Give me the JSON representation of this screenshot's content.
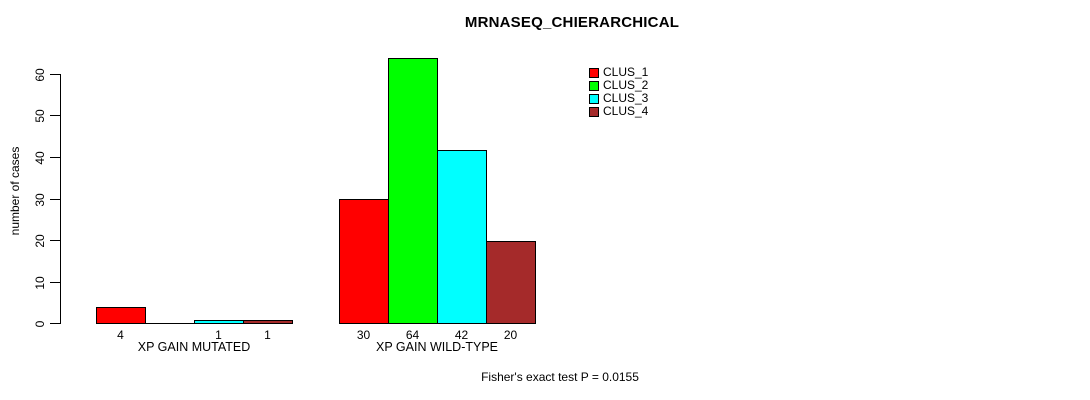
{
  "title": "MRNASEQ_CHIERARCHICAL",
  "y_axis": {
    "label": "number of cases"
  },
  "footer_note": "Fisher's exact test P = 0.0155",
  "legend": {
    "items": [
      {
        "label": "CLUS_1",
        "color": "#FF0000"
      },
      {
        "label": "CLUS_2",
        "color": "#00FF00"
      },
      {
        "label": "CLUS_3",
        "color": "#00FFFF"
      },
      {
        "label": "CLUS_4",
        "color": "#A52A2A"
      }
    ]
  },
  "chart_data": {
    "type": "bar",
    "title": "MRNASEQ_CHIERARCHICAL",
    "categories": [
      "XP GAIN MUTATED",
      "XP GAIN WILD-TYPE"
    ],
    "series": [
      {
        "name": "CLUS_1",
        "color": "#FF0000",
        "values": [
          4,
          30
        ]
      },
      {
        "name": "CLUS_2",
        "color": "#00FF00",
        "values": [
          0,
          64
        ]
      },
      {
        "name": "CLUS_3",
        "color": "#00FFFF",
        "values": [
          1,
          42
        ]
      },
      {
        "name": "CLUS_4",
        "color": "#A52A2A",
        "values": [
          1,
          20
        ]
      }
    ],
    "bar_value_labels": [
      [
        "4",
        "",
        "1",
        "1"
      ],
      [
        "30",
        "64",
        "42",
        "20"
      ]
    ],
    "xlabel": "",
    "ylabel": "number of cases",
    "yticks": [
      0,
      10,
      20,
      30,
      40,
      50,
      60
    ],
    "ylim": [
      0,
      66
    ],
    "grid": false,
    "legend_position": "top-right",
    "annotation": "Fisher's exact test P = 0.0155"
  }
}
